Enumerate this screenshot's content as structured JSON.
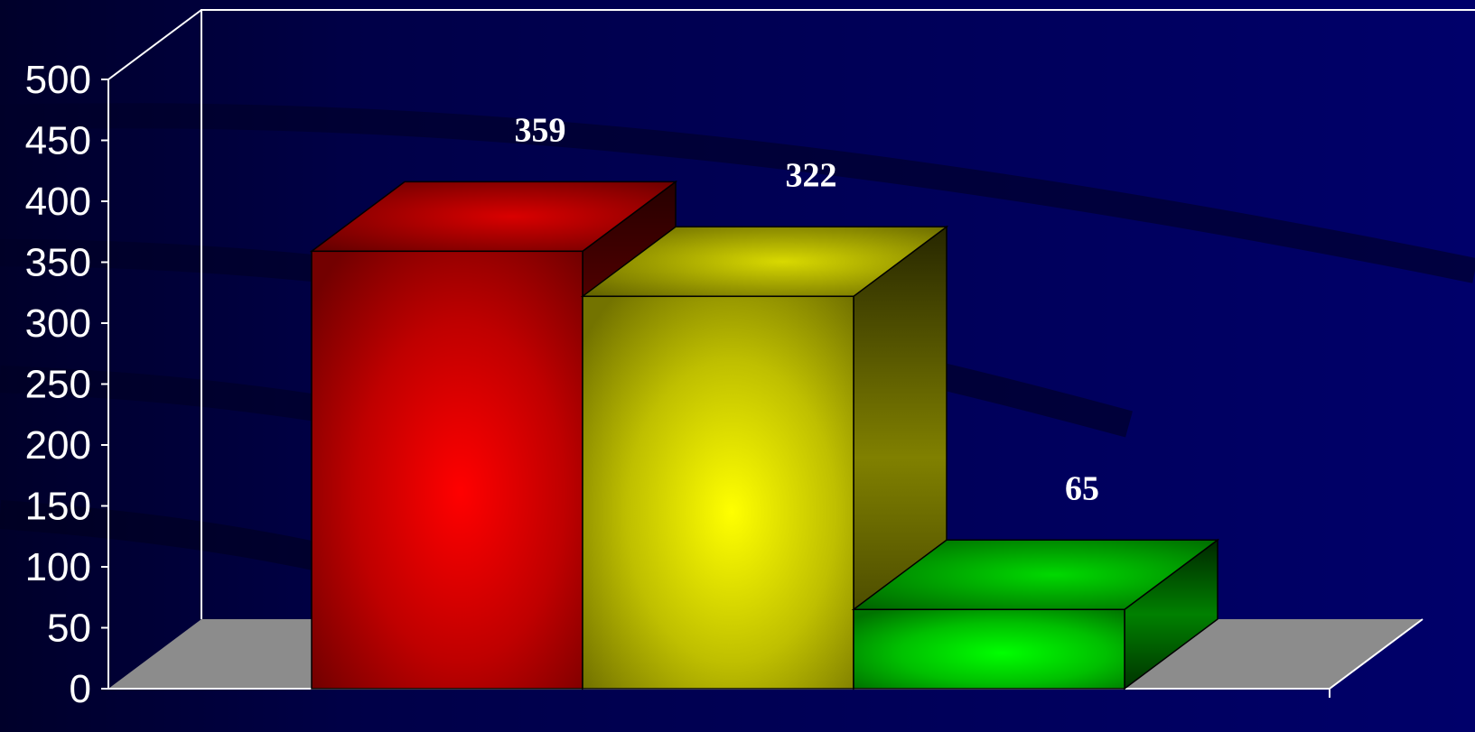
{
  "chart_data": {
    "type": "bar",
    "style": "3d",
    "title": "",
    "xlabel": "",
    "ylabel": "",
    "ylim": [
      0,
      500
    ],
    "y_ticks": [
      0,
      50,
      100,
      150,
      200,
      250,
      300,
      350,
      400,
      450,
      500
    ],
    "y_tick_labels": [
      "0",
      "50",
      "100",
      "150",
      "200",
      "250",
      "300",
      "350",
      "400",
      "450",
      "500"
    ],
    "grid": false,
    "legend": "none",
    "categories": [
      "",
      "",
      ""
    ],
    "values": [
      359,
      322,
      65
    ],
    "data_labels": [
      "359",
      "322",
      "65"
    ],
    "colors": [
      "#ff0000",
      "#ffff00",
      "#00ff00"
    ],
    "background_color": "#000050",
    "floor_color": "#8c8c8c",
    "axis_color": "#ffffff"
  }
}
